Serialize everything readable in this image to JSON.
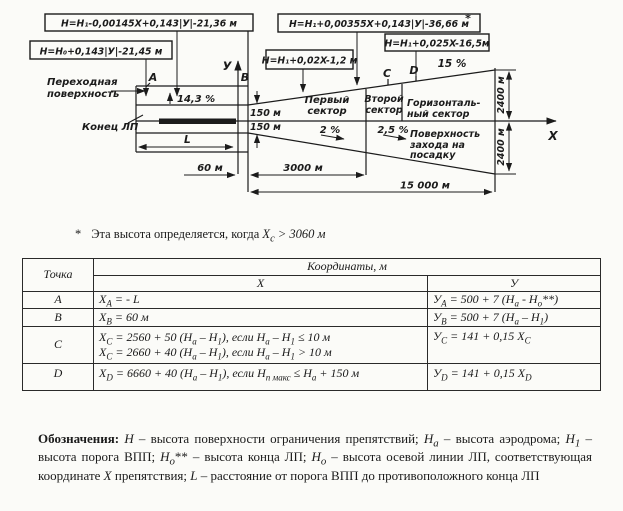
{
  "page": {
    "background": "#fbfbf8",
    "ink": "#1b1b1b"
  },
  "diagram": {
    "formulas": {
      "f1": "H=H₁-0,00145X+0,143|У|-21,36 м",
      "f2": "H=H₀+0,143|У|-21,45 м",
      "f3": "H=H₁+0,00355X+0,143|У|-36,66 м",
      "f3_star": "*",
      "f4": "H=H₁+0,025X-16,5м",
      "f5": "H=H₁+0,02X-1,2 м"
    },
    "points": {
      "a": "A",
      "b": "B",
      "c": "C",
      "d": "D"
    },
    "axes": {
      "x": "X",
      "y": "У"
    },
    "labels": {
      "transitional_line1": "Переходная",
      "transitional_line2": "поверхность",
      "runway_strip_end": "Конец ЛП",
      "slope_transitional": "14,3 %",
      "slope_fan": "15 %",
      "sector1_line1": "Первый",
      "sector1_line2": "сектор",
      "sector1_slope": "2 %",
      "sector2_line1": "Второй",
      "sector2_line2": "сектор",
      "sector2_slope": "2,5 %",
      "sector3_line1": "Горизонталь-",
      "sector3_line2": "ный сектор",
      "approach_line1": "Поверхность",
      "approach_line2": "захода на",
      "approach_line3": "посадку"
    },
    "dimensions": {
      "l": "L",
      "d60": "60 м",
      "d150_top": "150 м",
      "d150_bottom": "150 м",
      "d3000": "3000 м",
      "d15000": "15 000 м",
      "d2400_top": "2400 м",
      "d2400_bottom": "2400 м"
    }
  },
  "note": {
    "star": "*",
    "html": "Эта высота определяется, когда <i>Х<sub>с</sub> &gt; 3060 м</i>"
  },
  "table": {
    "header": {
      "point": "Точка",
      "coords": "Координаты, м",
      "x": "Х",
      "y": "У"
    },
    "rows": [
      {
        "point": "A",
        "x_html": "X<sub>A</sub> = - L",
        "y_html": "У<sub>A</sub> = 500 + 7 (H<sub>а</sub> - H<sub>о</sub>**)"
      },
      {
        "point": "B",
        "x_html": "X<sub>B</sub> = 60 м",
        "y_html": "У<sub>B</sub> = 500 + 7 (H<sub>а</sub> – H<sub>1</sub>)"
      },
      {
        "point": "C",
        "x_html": "X<sub>C</sub> = 2560 + 50 (H<sub>а</sub> – H<sub>1</sub>), если H<sub>а</sub> – H<sub>1</sub> ≤ 10 м<br>X<sub>C</sub> = 2660 + 40 (H<sub>а</sub> – H<sub>1</sub>), если H<sub>а</sub> – H<sub>1</sub> &gt; 10 м",
        "y_html": "У<sub>C</sub> = 141 + 0,15 X<sub>C</sub>"
      },
      {
        "point": "D",
        "x_html": "X<sub>D</sub> = 6660 + 40 (H<sub>а</sub> – H<sub>1</sub>), если H<sub>п макс</sub> ≤ H<sub>а</sub> + 150 м",
        "y_html": "У<sub>D</sub> = 141 + 0,15 X<sub>D</sub>"
      }
    ]
  },
  "legend_html": "<b>Обозначения:</b> <i>H</i> – высота поверхности ограничения препятствий; <i>H<sub>а</sub></i> – высота аэродрома; <i>H<sub>1</sub></i> – высота порога ВПП; <i>H<sub>о</sub></i>** – высота конца ЛП; <i>H<sub>о</sub></i> – высота осевой линии ЛП, соответствующая координате <i>Х</i> препятствия; <i>L</i> – расстояние от порога ВПП до противоположного конца ЛП"
}
